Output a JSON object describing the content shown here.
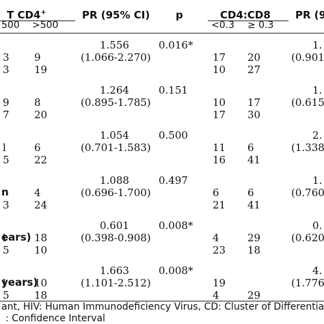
{
  "header": {
    "tcd4": "T CD4",
    "tcd4_sup": "+",
    "pr1": "PR (95% CI)",
    "p": "p",
    "cd4cd8": "CD4:CD8",
    "pr2": "PR (9",
    "sub_a": "500",
    "sub_b": ">500",
    "sub_c": "<0.3",
    "sub_d": "≥ 0.3"
  },
  "groups": [
    {
      "label": "",
      "pr1": "1.556",
      "ci1": "(1.066-2.270)",
      "p": "0.016*",
      "pr2": "1.",
      "ci2": "(0.901",
      "rows": [
        {
          "a": "3",
          "b": "9",
          "c": "17",
          "d": "20"
        },
        {
          "a": "3",
          "b": "19",
          "c": "10",
          "d": "27"
        }
      ]
    },
    {
      "label": "",
      "pr1": "1.264",
      "ci1": "(0.895-1.785)",
      "p": "0.151",
      "pr2": "1.",
      "ci2": "(0.615",
      "rows": [
        {
          "a": "9",
          "b": "8",
          "c": "10",
          "d": "17"
        },
        {
          "a": "7",
          "b": "20",
          "c": "17",
          "d": "30"
        }
      ]
    },
    {
      "label": "",
      "pr1": "1.054",
      "ci1": "(0.701-1.583)",
      "p": "0.500",
      "pr2": "2.",
      "ci2": "(1.338",
      "rows": [
        {
          "a": "l",
          "b": "6",
          "c": "11",
          "d": "6"
        },
        {
          "a": "5",
          "b": "22",
          "c": "16",
          "d": "41"
        }
      ]
    },
    {
      "label": "n",
      "pr1": "1.088",
      "ci1": "(0.696-1.700)",
      "p": "0.497",
      "pr2": "1.",
      "ci2": "(0.760",
      "rows": [
        {
          "a": "",
          "b": "4",
          "c": "6",
          "d": "6"
        },
        {
          "a": "3",
          "b": "24",
          "c": "21",
          "d": "41"
        }
      ]
    },
    {
      "label": "ears)",
      "pr1": "0.601",
      "ci1": "(0.398-0.908)",
      "p": "0.008*",
      "pr2": "0.",
      "ci2": "(0.620",
      "rows": [
        {
          "a": "l",
          "b": "18",
          "c": "4",
          "d": "29"
        },
        {
          "a": "5",
          "b": "10",
          "c": "23",
          "d": "18"
        }
      ]
    },
    {
      "label": "years)",
      "pr1": "1.663",
      "ci1": "(1.101-2.512)",
      "p": "0.008*",
      "pr2": "4.",
      "ci2": "(1.776",
      "rows": [
        {
          "a": "l",
          "b": "10",
          "c": "19",
          "d": ""
        },
        {
          "a": "5",
          "b": "18",
          "c": "4",
          "d": "29"
        }
      ]
    }
  ],
  "footnote": {
    "line1": "ant, HIV: Human Immunodeficiency Virus, CD: Cluster of Differentiatio",
    "line2": ": Confidence Interval"
  }
}
